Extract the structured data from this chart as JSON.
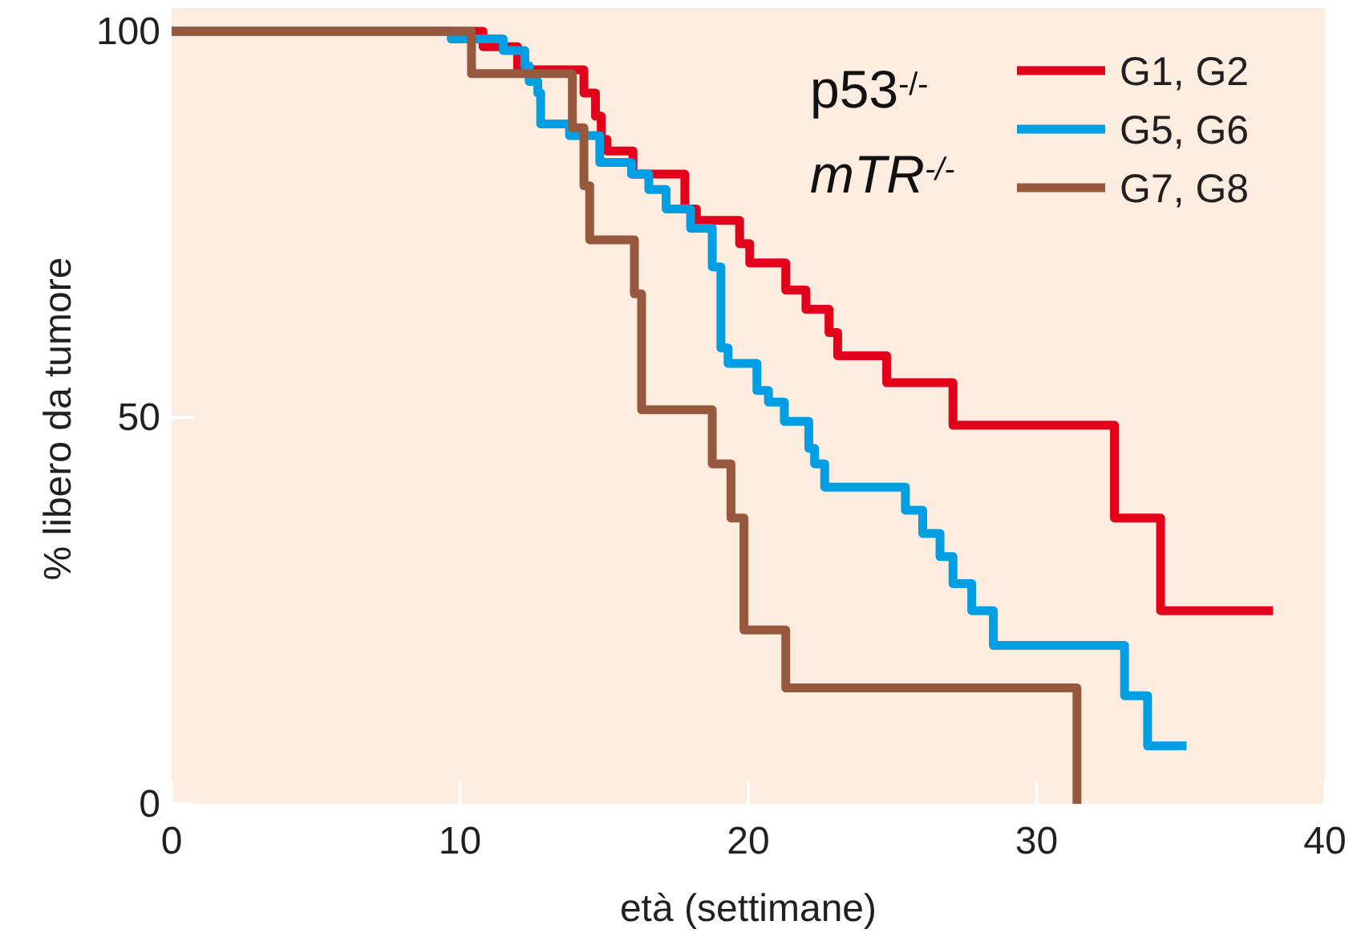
{
  "chart_data": {
    "type": "step",
    "xlabel": "età (settimane)",
    "ylabel": "% libero da tumore",
    "legend_title": "p53$^{-/-}$ mTR$^{-/-}$",
    "legend": "top right",
    "xlim": [
      0,
      40
    ],
    "ylim": [
      0,
      103
    ],
    "xticks": [
      0,
      10,
      20,
      30,
      40
    ],
    "yticks": [
      0,
      50,
      100
    ],
    "series": [
      {
        "name": "G1, G2",
        "color": "#e2001a",
        "x": [
          0,
          10.8,
          12.0,
          14.3,
          14.7,
          14.9,
          15.1,
          16.0,
          17.8,
          18.2,
          19.7,
          20.05,
          21.3,
          22.0,
          22.8,
          23.1,
          24.8,
          27.1,
          32.7,
          34.3,
          38.2
        ],
        "values": [
          100,
          98,
          95,
          92,
          89,
          86,
          84.5,
          81.5,
          77,
          75.5,
          72.5,
          70,
          66.5,
          64,
          61,
          58,
          54.5,
          49,
          37,
          25,
          25
        ]
      },
      {
        "name": "G5, G6",
        "color": "#009fe3",
        "x": [
          0,
          9.7,
          11.5,
          12.25,
          12.4,
          12.7,
          12.8,
          13.8,
          14.85,
          15.95,
          16.55,
          17.15,
          18.0,
          18.75,
          19.05,
          19.3,
          20.3,
          20.7,
          21.25,
          22.1,
          22.3,
          22.65,
          25.45,
          26.05,
          26.65,
          27.1,
          27.75,
          28.5,
          33.05,
          33.85,
          35.2
        ],
        "values": [
          100,
          99,
          97.5,
          95.5,
          93.5,
          92,
          88,
          86.5,
          83,
          81.5,
          79.5,
          77,
          74.5,
          69.5,
          59,
          57,
          53.5,
          52,
          49.5,
          46,
          44,
          41,
          38,
          35,
          32,
          28.5,
          25,
          20.5,
          14,
          7.5,
          7.5
        ]
      },
      {
        "name": "G7, G8",
        "color": "#97593d",
        "x": [
          0,
          10.4,
          13.9,
          14.3,
          14.5,
          16.05,
          16.3,
          18.75,
          19.4,
          19.85,
          21.3,
          31.4
        ],
        "values": [
          100,
          94.5,
          87.5,
          80,
          73,
          66,
          51,
          44,
          37,
          22.5,
          15,
          0
        ]
      }
    ]
  }
}
